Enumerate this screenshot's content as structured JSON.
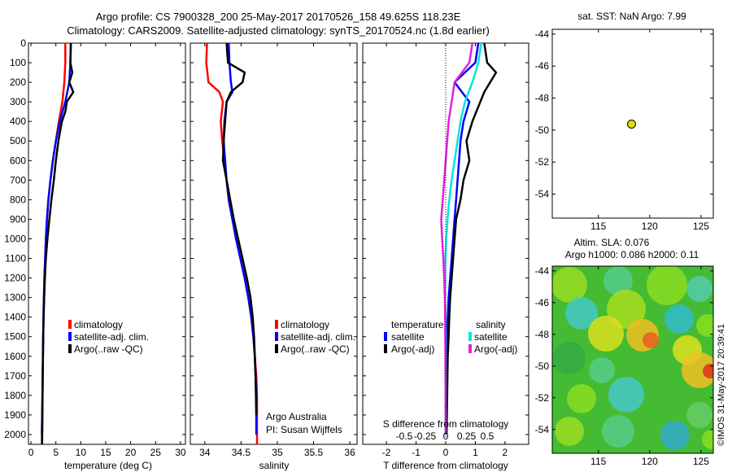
{
  "figure": {
    "title_line1": "Argo profile: CS 7900328_200 25-May-2017 20170526_158 49.625S 118.23E",
    "title_line2": "Climatology: CARS2009. Satellite-adjusted climatology: synTS_20170524.nc (1.8d earlier)",
    "watermark": "©IMOS 31-May-2017 20:39:41",
    "agency": "Argo Australia",
    "pi": "PI: Susan Wijffels"
  },
  "colors": {
    "climatology": "#ff0000",
    "satellite": "#0000ff",
    "argo": "#000000",
    "cyan": "#00e5e5",
    "magenta": "#e020e0",
    "dot": "#e0e000"
  },
  "chart_data": [
    {
      "type": "line",
      "name": "temperature-profile",
      "xlabel": "temperature (deg C)",
      "ylabel": "",
      "xlim": [
        -0.5,
        31
      ],
      "ylim": [
        2050,
        0
      ],
      "xticks": [
        0,
        5,
        10,
        15,
        20,
        25,
        30
      ],
      "yticks": [
        0,
        100,
        200,
        300,
        400,
        500,
        600,
        700,
        800,
        900,
        1000,
        1100,
        1200,
        1300,
        1400,
        1500,
        1600,
        1700,
        1800,
        1900,
        2000
      ],
      "legend": [
        "climatology",
        "satellite-adj. clim.",
        "Argo(..raw -QC)"
      ],
      "series": [
        {
          "name": "climatology",
          "color": "#ff0000",
          "x": [
            6.9,
            6.9,
            6.7,
            6.3,
            5.6,
            5.0,
            4.4,
            3.9,
            3.5,
            3.2,
            3.0,
            2.85,
            2.7,
            2.6,
            2.5,
            2.45,
            2.4,
            2.35,
            2.3,
            2.25,
            2.2,
            2.2
          ],
          "y": [
            0,
            100,
            200,
            300,
            400,
            500,
            600,
            700,
            800,
            900,
            1000,
            1100,
            1200,
            1300,
            1400,
            1500,
            1600,
            1700,
            1800,
            1900,
            2000,
            2050
          ]
        },
        {
          "name": "satellite-adj. clim.",
          "color": "#0000ff",
          "x": [
            8.0,
            7.9,
            7.7,
            6.9,
            5.8,
            5.0,
            4.4,
            3.9,
            3.5,
            3.2,
            3.0,
            2.85,
            2.7,
            2.6,
            2.5,
            2.45,
            2.4,
            2.35,
            2.3,
            2.25,
            2.2
          ],
          "y": [
            0,
            100,
            200,
            300,
            400,
            500,
            600,
            700,
            800,
            900,
            1000,
            1100,
            1200,
            1300,
            1400,
            1500,
            1600,
            1700,
            1800,
            1900,
            2000
          ]
        },
        {
          "name": "Argo(..raw -QC)",
          "color": "#000000",
          "x": [
            8.0,
            7.9,
            8.3,
            7.7,
            8.5,
            7.2,
            6.9,
            6.2,
            5.5,
            5.0,
            4.6,
            4.1,
            3.7,
            3.3,
            3.0,
            2.8,
            2.65,
            2.55,
            2.45,
            2.35,
            2.3,
            2.25
          ],
          "y": [
            0,
            100,
            150,
            200,
            250,
            300,
            350,
            400,
            500,
            600,
            700,
            800,
            900,
            1000,
            1100,
            1200,
            1300,
            1400,
            1500,
            1700,
            1900,
            2050
          ]
        }
      ]
    },
    {
      "type": "line",
      "name": "salinity-profile",
      "xlabel": "salinity",
      "xlim": [
        33.8,
        36.1
      ],
      "ylim": [
        2050,
        0
      ],
      "xticks": [
        34,
        34.5,
        35,
        35.5,
        36
      ],
      "xticklabels": [
        "34",
        "34.5",
        "35",
        "35.5",
        "36"
      ],
      "legend": [
        "climatology",
        "satellite-adj. clim.",
        "Argo(..raw -QC)"
      ],
      "series": [
        {
          "name": "climatology",
          "color": "#ff0000",
          "x": [
            34.03,
            34.02,
            34.05,
            34.2,
            34.25,
            34.22,
            34.24,
            34.27,
            34.3,
            34.33,
            34.38,
            34.43,
            34.49,
            34.55,
            34.6,
            34.64,
            34.67,
            34.69,
            34.71,
            34.72,
            34.72,
            34.72
          ],
          "y": [
            0,
            100,
            200,
            250,
            300,
            400,
            500,
            600,
            700,
            800,
            900,
            1000,
            1100,
            1200,
            1300,
            1400,
            1500,
            1600,
            1700,
            1800,
            1900,
            2050
          ]
        },
        {
          "name": "satellite-adj. clim.",
          "color": "#0000ff",
          "x": [
            34.33,
            34.34,
            34.36,
            34.38,
            34.3,
            34.27,
            34.26,
            34.28,
            34.3,
            34.33,
            34.38,
            34.43,
            34.49,
            34.55,
            34.6,
            34.64,
            34.67,
            34.69,
            34.7,
            34.71,
            34.71
          ],
          "y": [
            0,
            100,
            200,
            250,
            300,
            400,
            500,
            600,
            700,
            800,
            900,
            1000,
            1100,
            1200,
            1300,
            1400,
            1500,
            1600,
            1700,
            1800,
            2000
          ]
        },
        {
          "name": "Argo(..raw -QC)",
          "color": "#000000",
          "x": [
            34.3,
            34.32,
            34.55,
            34.52,
            34.36,
            34.3,
            34.28,
            34.26,
            34.25,
            34.3,
            34.35,
            34.4,
            34.46,
            34.52,
            34.58,
            34.63,
            34.66,
            34.68,
            34.7,
            34.71
          ],
          "y": [
            0,
            100,
            150,
            200,
            250,
            300,
            400,
            500,
            600,
            700,
            800,
            900,
            1000,
            1100,
            1200,
            1300,
            1400,
            1500,
            1700,
            1900
          ]
        }
      ]
    },
    {
      "type": "line",
      "name": "difference-profile",
      "xlabel": "T difference from climatology",
      "xlabel2": "S difference from climatology",
      "xlim": [
        -2.8,
        2.8
      ],
      "ylim": [
        2050,
        0
      ],
      "xticks": [
        -2,
        -1,
        0,
        1,
        2
      ],
      "sticks": [
        -0.5,
        -0.25,
        0,
        0.25,
        0.5
      ],
      "sticklabels": [
        "-0.5",
        "-0.25",
        "0",
        "0.25",
        "0.5"
      ],
      "legend_temperature_heading": "temperature",
      "legend_salinity_heading": "salinity",
      "legend_entries": [
        "satellite",
        "Argo(-adj)",
        "satellite",
        "Argo(-adj)"
      ],
      "series": [
        {
          "name": "temperature satellite",
          "color": "#0000ff",
          "x": [
            1.1,
            1.0,
            0.3,
            0.8,
            0.6,
            0.5,
            0.45,
            0.4,
            0.35,
            0.3,
            0.25,
            0.2,
            0.15,
            0.1,
            0.07,
            0.05,
            0.03,
            0.02,
            0.01
          ],
          "y": [
            0,
            100,
            200,
            300,
            400,
            500,
            600,
            700,
            800,
            900,
            1000,
            1100,
            1200,
            1300,
            1400,
            1500,
            1600,
            1800,
            2000
          ]
        },
        {
          "name": "temperature Argo",
          "color": "#000000",
          "x": [
            1.3,
            1.4,
            1.7,
            1.3,
            0.9,
            0.7,
            0.8,
            0.6,
            0.5,
            0.35,
            0.3,
            0.25,
            0.2,
            0.15,
            0.12,
            0.1,
            0.07,
            0.05,
            0.03
          ],
          "y": [
            0,
            100,
            150,
            250,
            400,
            500,
            600,
            700,
            800,
            900,
            1000,
            1100,
            1200,
            1300,
            1400,
            1500,
            1600,
            1800,
            2000
          ]
        },
        {
          "name": "salinity satellite",
          "color": "#00e5e5",
          "x": [
            1.2,
            1.1,
            0.9,
            0.65,
            0.5,
            0.4,
            0.3,
            0.2,
            0.12,
            0.06,
            0.02,
            -0.01,
            -0.02,
            -0.02,
            -0.01,
            0.0,
            0.0,
            0.0
          ],
          "y": [
            0,
            100,
            200,
            300,
            400,
            500,
            600,
            700,
            800,
            900,
            1000,
            1100,
            1200,
            1300,
            1400,
            1500,
            1700,
            2000
          ]
        },
        {
          "name": "salinity Argo",
          "color": "#e020e0",
          "x": [
            0.9,
            0.8,
            0.3,
            0.2,
            0.1,
            0.05,
            0.0,
            -0.05,
            -0.1,
            -0.15,
            -0.12,
            -0.08,
            -0.05,
            -0.03,
            -0.02,
            -0.01,
            0.0
          ],
          "y": [
            0,
            100,
            200,
            300,
            400,
            500,
            600,
            700,
            800,
            900,
            1000,
            1100,
            1200,
            1300,
            1400,
            1600,
            2000
          ]
        }
      ]
    },
    {
      "type": "scatter",
      "name": "location-map",
      "title": "sat. SST: NaN Argo: 7.99",
      "xlim": [
        110.5,
        126.2
      ],
      "ylim": [
        -55.5,
        -43.7
      ],
      "xticks": [
        115,
        120,
        125
      ],
      "yticks": [
        -44,
        -46,
        -48,
        -50,
        -52,
        -54
      ],
      "points": [
        {
          "x": 118.23,
          "y": -49.625
        }
      ]
    },
    {
      "type": "heatmap",
      "name": "sla-map",
      "title_line1": "Altim. SLA: 0.076",
      "title_line2": "Argo h1000: 0.086 h2000: 0.11",
      "xlim": [
        110.5,
        126.2
      ],
      "ylim": [
        -55.5,
        -43.7
      ],
      "xticks": [
        115,
        120,
        125
      ],
      "yticks": [
        -44,
        -46,
        -48,
        -50,
        -52,
        -54
      ]
    }
  ]
}
